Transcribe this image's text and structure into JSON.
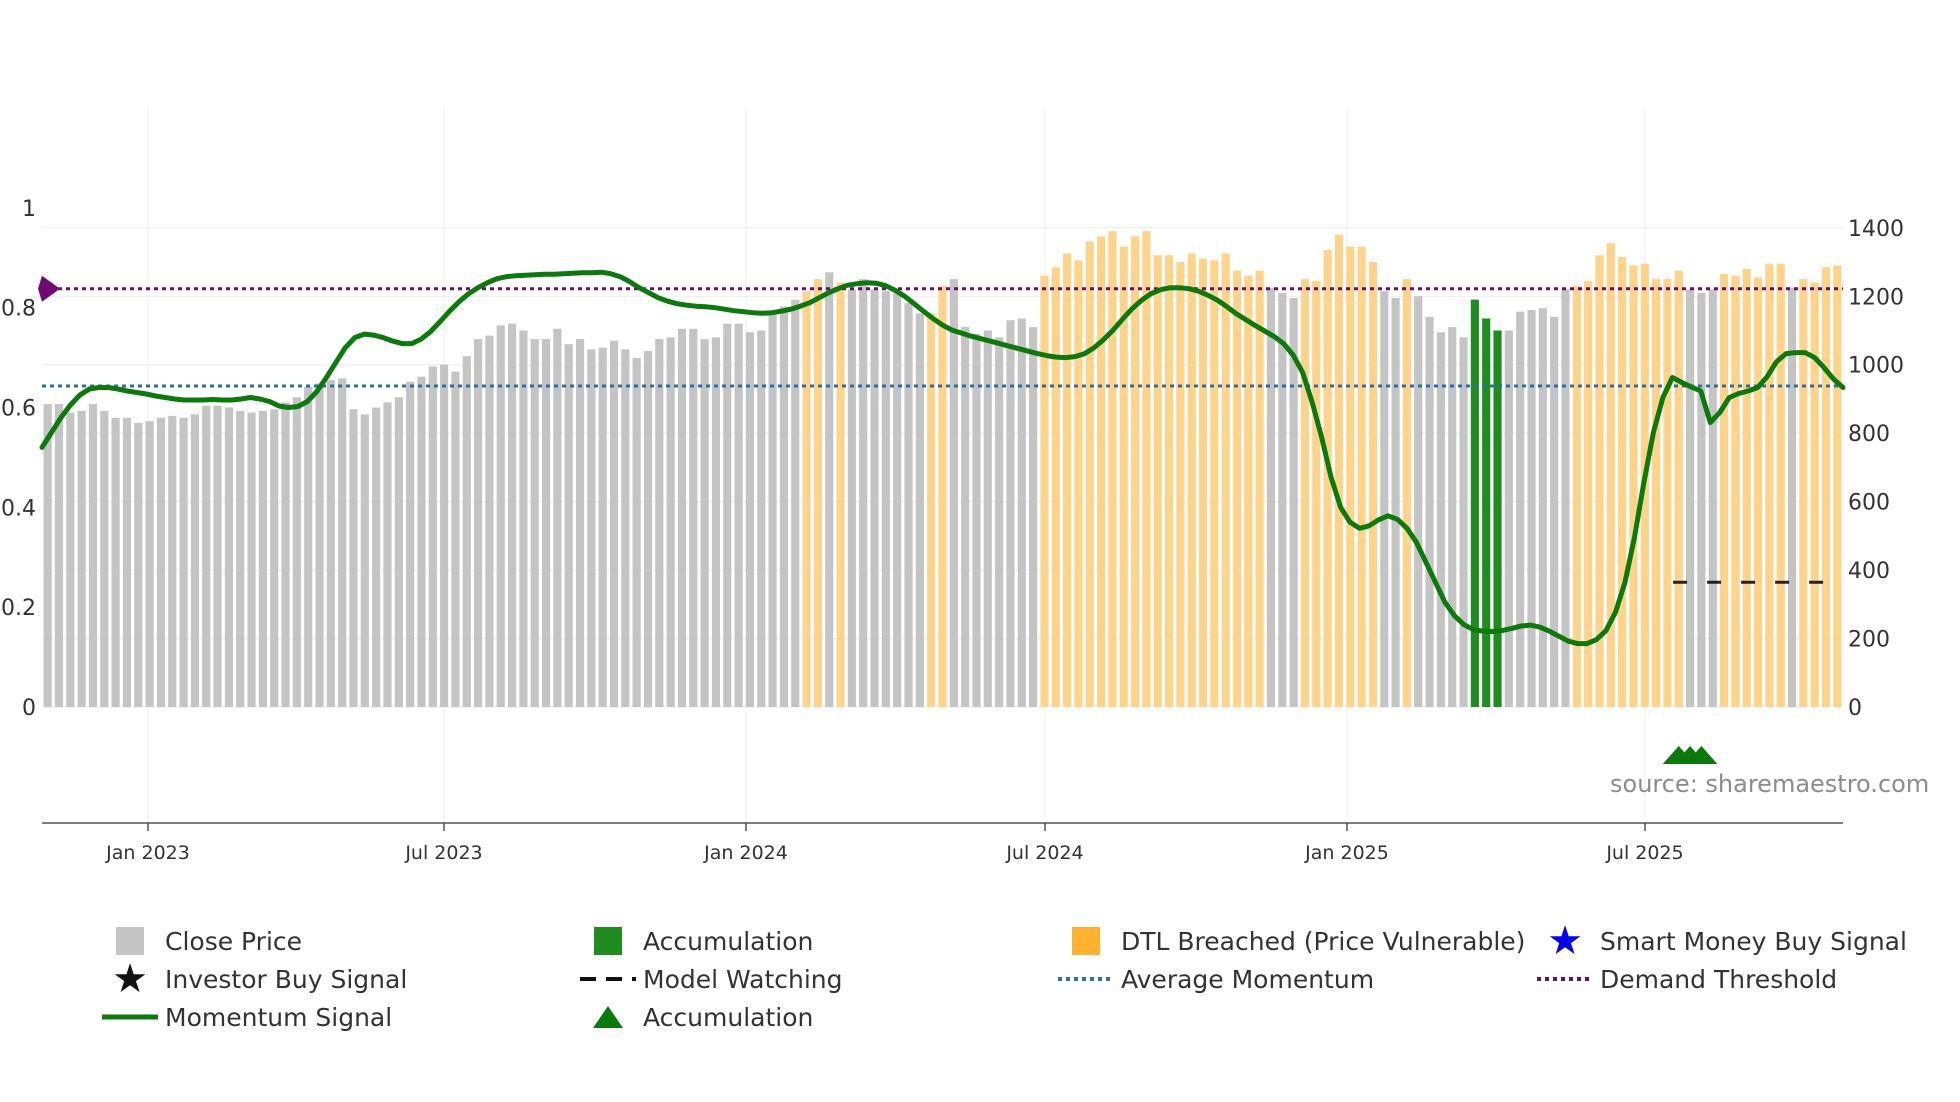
{
  "source": "source: sharemaestro.com",
  "colors": {
    "close": "#c4c4c4",
    "accumulation": "#1e8c1e",
    "dtl": "#ffd48a",
    "momentum": "#0a7a0a",
    "average": "#2a6fa5",
    "demand": "#6e0b70",
    "watching": "#222222",
    "smart_money": "#0000ee"
  },
  "chart_data": {
    "type": "bar+line",
    "x_ticks": [
      "Jan 2023",
      "Jul 2023",
      "Jan 2024",
      "Jul 2024",
      "Jan 2025",
      "Jul 2025"
    ],
    "y_left": {
      "range": [
        0,
        1
      ],
      "ticks": [
        "0",
        "0.2",
        "0.4",
        "0.6",
        "0.8",
        "1"
      ]
    },
    "y_right": {
      "range": [
        0,
        1400
      ],
      "ticks": [
        "0",
        "200",
        "400",
        "600",
        "800",
        "1000",
        "1200",
        "1400"
      ]
    },
    "bars": {
      "description": "Weekly close price bars (right axis), category: 0=Close Price, 1=DTL Breached, 2=Accumulation",
      "values": [
        885,
        885,
        860,
        865,
        885,
        865,
        845,
        845,
        830,
        835,
        845,
        850,
        845,
        855,
        880,
        880,
        875,
        865,
        860,
        865,
        870,
        890,
        905,
        935,
        945,
        955,
        960,
        870,
        855,
        875,
        890,
        905,
        950,
        965,
        995,
        1000,
        980,
        1025,
        1075,
        1085,
        1115,
        1120,
        1100,
        1075,
        1075,
        1105,
        1060,
        1075,
        1045,
        1050,
        1070,
        1045,
        1020,
        1040,
        1075,
        1080,
        1105,
        1105,
        1075,
        1080,
        1120,
        1120,
        1095,
        1100,
        1150,
        1170,
        1190,
        1215,
        1250,
        1270,
        1240,
        1220,
        1250,
        1220,
        1215,
        1210,
        1180,
        1150,
        1150,
        1230,
        1250,
        1110,
        1090,
        1100,
        1080,
        1130,
        1135,
        1110,
        1260,
        1285,
        1325,
        1305,
        1360,
        1375,
        1390,
        1345,
        1375,
        1390,
        1320,
        1320,
        1300,
        1325,
        1310,
        1305,
        1325,
        1275,
        1260,
        1275,
        1225,
        1210,
        1195,
        1250,
        1245,
        1335,
        1380,
        1345,
        1345,
        1300,
        1215,
        1195,
        1250,
        1200,
        1140,
        1095,
        1110,
        1080,
        1190,
        1135,
        1100,
        1100,
        1155,
        1160,
        1165,
        1140,
        1220,
        1230,
        1245,
        1320,
        1355,
        1315,
        1290,
        1295,
        1250,
        1250,
        1275,
        1220,
        1210,
        1220,
        1265,
        1260,
        1280,
        1255,
        1295,
        1295,
        1225,
        1250,
        1240,
        1285,
        1290
      ],
      "category": [
        0,
        0,
        0,
        0,
        0,
        0,
        0,
        0,
        0,
        0,
        0,
        0,
        0,
        0,
        0,
        0,
        0,
        0,
        0,
        0,
        0,
        0,
        0,
        0,
        0,
        0,
        0,
        0,
        0,
        0,
        0,
        0,
        0,
        0,
        0,
        0,
        0,
        0,
        0,
        0,
        0,
        0,
        0,
        0,
        0,
        0,
        0,
        0,
        0,
        0,
        0,
        0,
        0,
        0,
        0,
        0,
        0,
        0,
        0,
        0,
        0,
        0,
        0,
        0,
        0,
        0,
        0,
        1,
        1,
        0,
        1,
        0,
        0,
        0,
        0,
        0,
        0,
        0,
        1,
        1,
        0,
        0,
        0,
        0,
        0,
        0,
        0,
        0,
        1,
        1,
        1,
        1,
        1,
        1,
        1,
        1,
        1,
        1,
        1,
        1,
        1,
        1,
        1,
        1,
        1,
        1,
        1,
        1,
        0,
        0,
        0,
        1,
        1,
        1,
        1,
        1,
        1,
        1,
        0,
        0,
        1,
        0,
        0,
        0,
        0,
        0,
        2,
        2,
        2,
        0,
        0,
        0,
        0,
        0,
        0,
        1,
        1,
        1,
        1,
        1,
        1,
        1,
        1,
        1,
        1,
        0,
        0,
        0,
        1,
        1,
        1,
        1,
        1,
        1,
        0,
        1,
        1,
        1,
        1
      ]
    },
    "momentum": [
      0.52,
      0.55,
      0.58,
      0.605,
      0.625,
      0.637,
      0.64,
      0.64,
      0.637,
      0.633,
      0.63,
      0.627,
      0.623,
      0.62,
      0.617,
      0.615,
      0.615,
      0.615,
      0.616,
      0.615,
      0.615,
      0.617,
      0.62,
      0.617,
      0.612,
      0.603,
      0.6,
      0.602,
      0.612,
      0.632,
      0.66,
      0.69,
      0.72,
      0.74,
      0.747,
      0.745,
      0.74,
      0.733,
      0.728,
      0.728,
      0.737,
      0.752,
      0.772,
      0.793,
      0.812,
      0.828,
      0.84,
      0.85,
      0.858,
      0.862,
      0.864,
      0.865,
      0.866,
      0.867,
      0.867,
      0.868,
      0.869,
      0.87,
      0.87,
      0.871,
      0.868,
      0.862,
      0.852,
      0.84,
      0.83,
      0.82,
      0.813,
      0.808,
      0.805,
      0.803,
      0.802,
      0.8,
      0.797,
      0.794,
      0.792,
      0.79,
      0.789,
      0.79,
      0.793,
      0.797,
      0.803,
      0.81,
      0.82,
      0.83,
      0.838,
      0.845,
      0.848,
      0.85,
      0.849,
      0.844,
      0.835,
      0.823,
      0.808,
      0.793,
      0.778,
      0.765,
      0.755,
      0.749,
      0.743,
      0.738,
      0.733,
      0.728,
      0.723,
      0.718,
      0.713,
      0.708,
      0.704,
      0.701,
      0.7,
      0.702,
      0.708,
      0.72,
      0.736,
      0.755,
      0.777,
      0.798,
      0.815,
      0.828,
      0.836,
      0.84,
      0.84,
      0.838,
      0.833,
      0.825,
      0.815,
      0.802,
      0.788,
      0.776,
      0.764,
      0.753,
      0.742,
      0.728,
      0.705,
      0.67,
      0.61,
      0.54,
      0.46,
      0.4,
      0.37,
      0.358,
      0.363,
      0.375,
      0.383,
      0.376,
      0.358,
      0.33,
      0.29,
      0.25,
      0.21,
      0.183,
      0.165,
      0.155,
      0.152,
      0.151,
      0.153,
      0.157,
      0.162,
      0.164,
      0.16,
      0.152,
      0.142,
      0.132,
      0.127,
      0.127,
      0.135,
      0.153,
      0.19,
      0.25,
      0.34,
      0.45,
      0.55,
      0.62,
      0.66,
      0.65,
      0.641,
      0.633,
      0.57,
      0.59,
      0.62,
      0.628,
      0.633,
      0.64,
      0.662,
      0.692,
      0.708,
      0.71,
      0.71,
      0.7,
      0.68,
      0.657,
      0.64
    ],
    "average_momentum": 0.643,
    "demand_threshold": 0.838,
    "model_watching_level": 0.25,
    "accumulation_markers": 3
  },
  "legend": [
    {
      "symbol": "square-gray",
      "label": "Close Price"
    },
    {
      "symbol": "square-green",
      "label": "Accumulation"
    },
    {
      "symbol": "square-orange",
      "label": "DTL Breached (Price Vulnerable)"
    },
    {
      "symbol": "star-blue",
      "label": "Smart Money Buy Signal"
    },
    {
      "symbol": "star-black",
      "label": "Investor Buy Signal"
    },
    {
      "symbol": "dash-black",
      "label": "Model Watching"
    },
    {
      "symbol": "dot-blue",
      "label": "Average Momentum"
    },
    {
      "symbol": "dot-purple",
      "label": "Demand Threshold"
    },
    {
      "symbol": "line-green",
      "label": "Momentum Signal"
    },
    {
      "symbol": "triangle-green",
      "label": "Accumulation"
    }
  ]
}
